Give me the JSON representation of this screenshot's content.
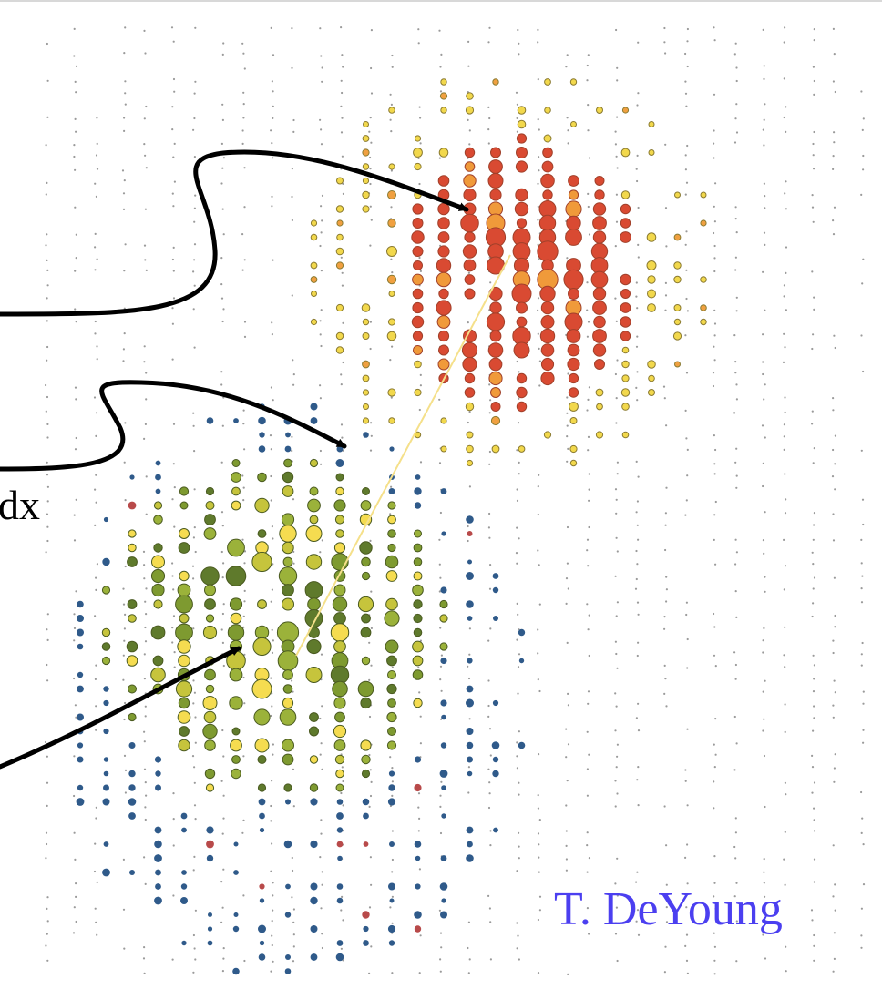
{
  "annotations": {
    "partial_label": "dx",
    "credit": "T. DeYoung"
  }
}
